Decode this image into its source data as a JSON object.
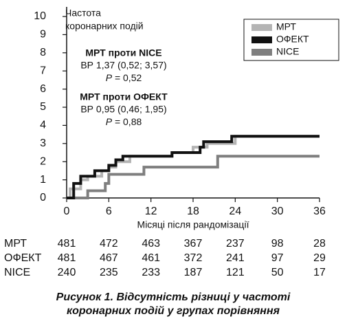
{
  "chart_data": {
    "type": "step",
    "y_label": [
      "Частота",
      "коронарних подій"
    ],
    "x_label": "Місяці після рандомізації",
    "xlim": [
      0,
      36
    ],
    "xticks": [
      0,
      6,
      12,
      18,
      24,
      30,
      36
    ],
    "ylim": [
      0,
      10
    ],
    "yticks": [
      0,
      1,
      2,
      3,
      4,
      5,
      6,
      7,
      8,
      9,
      10
    ],
    "legend": "top-right",
    "annotations": [
      {
        "title": "МРТ проти NICE",
        "lines": [
          "ВР 1,37 (0,52; 3,57)",
          "P = 0,52"
        ]
      },
      {
        "title": "МРТ проти ОФЕКТ",
        "lines": [
          "ВР 0,95 (0,46; 1,95)",
          "P = 0,88"
        ]
      }
    ],
    "series": [
      {
        "name": "МРТ",
        "color": "#b4b4b4",
        "x": [
          0,
          0.5,
          2,
          3,
          5,
          6,
          7,
          9,
          15,
          18,
          20,
          24,
          36
        ],
        "values": [
          0,
          0.5,
          1,
          1.2,
          1.5,
          1.7,
          2,
          2.3,
          2.5,
          2.8,
          3,
          3.4,
          3.4
        ],
        "at_risk": [
          481,
          472,
          463,
          367,
          237,
          98,
          28
        ]
      },
      {
        "name": "ОФЕКТ",
        "color": "#111111",
        "x": [
          0,
          1,
          2,
          4,
          6,
          7,
          8,
          15,
          19,
          19.5,
          23.5,
          36
        ],
        "values": [
          0,
          0.8,
          1.2,
          1.5,
          1.8,
          2.1,
          2.3,
          2.5,
          2.8,
          3.1,
          3.4,
          3.4
        ],
        "at_risk": [
          481,
          467,
          461,
          372,
          241,
          97,
          29
        ]
      },
      {
        "name": "NICE",
        "color": "#7f7f7f",
        "x": [
          0,
          3,
          5.5,
          6,
          11,
          21.5,
          36
        ],
        "values": [
          0,
          0.4,
          0.8,
          1.3,
          1.7,
          2.3,
          2.3
        ],
        "at_risk": [
          240,
          235,
          233,
          187,
          121,
          50,
          17
        ]
      }
    ],
    "caption": [
      "Рисунок 1.  Відсутність різниці у частоті",
      "коронарних подій у групах порівняння"
    ]
  }
}
